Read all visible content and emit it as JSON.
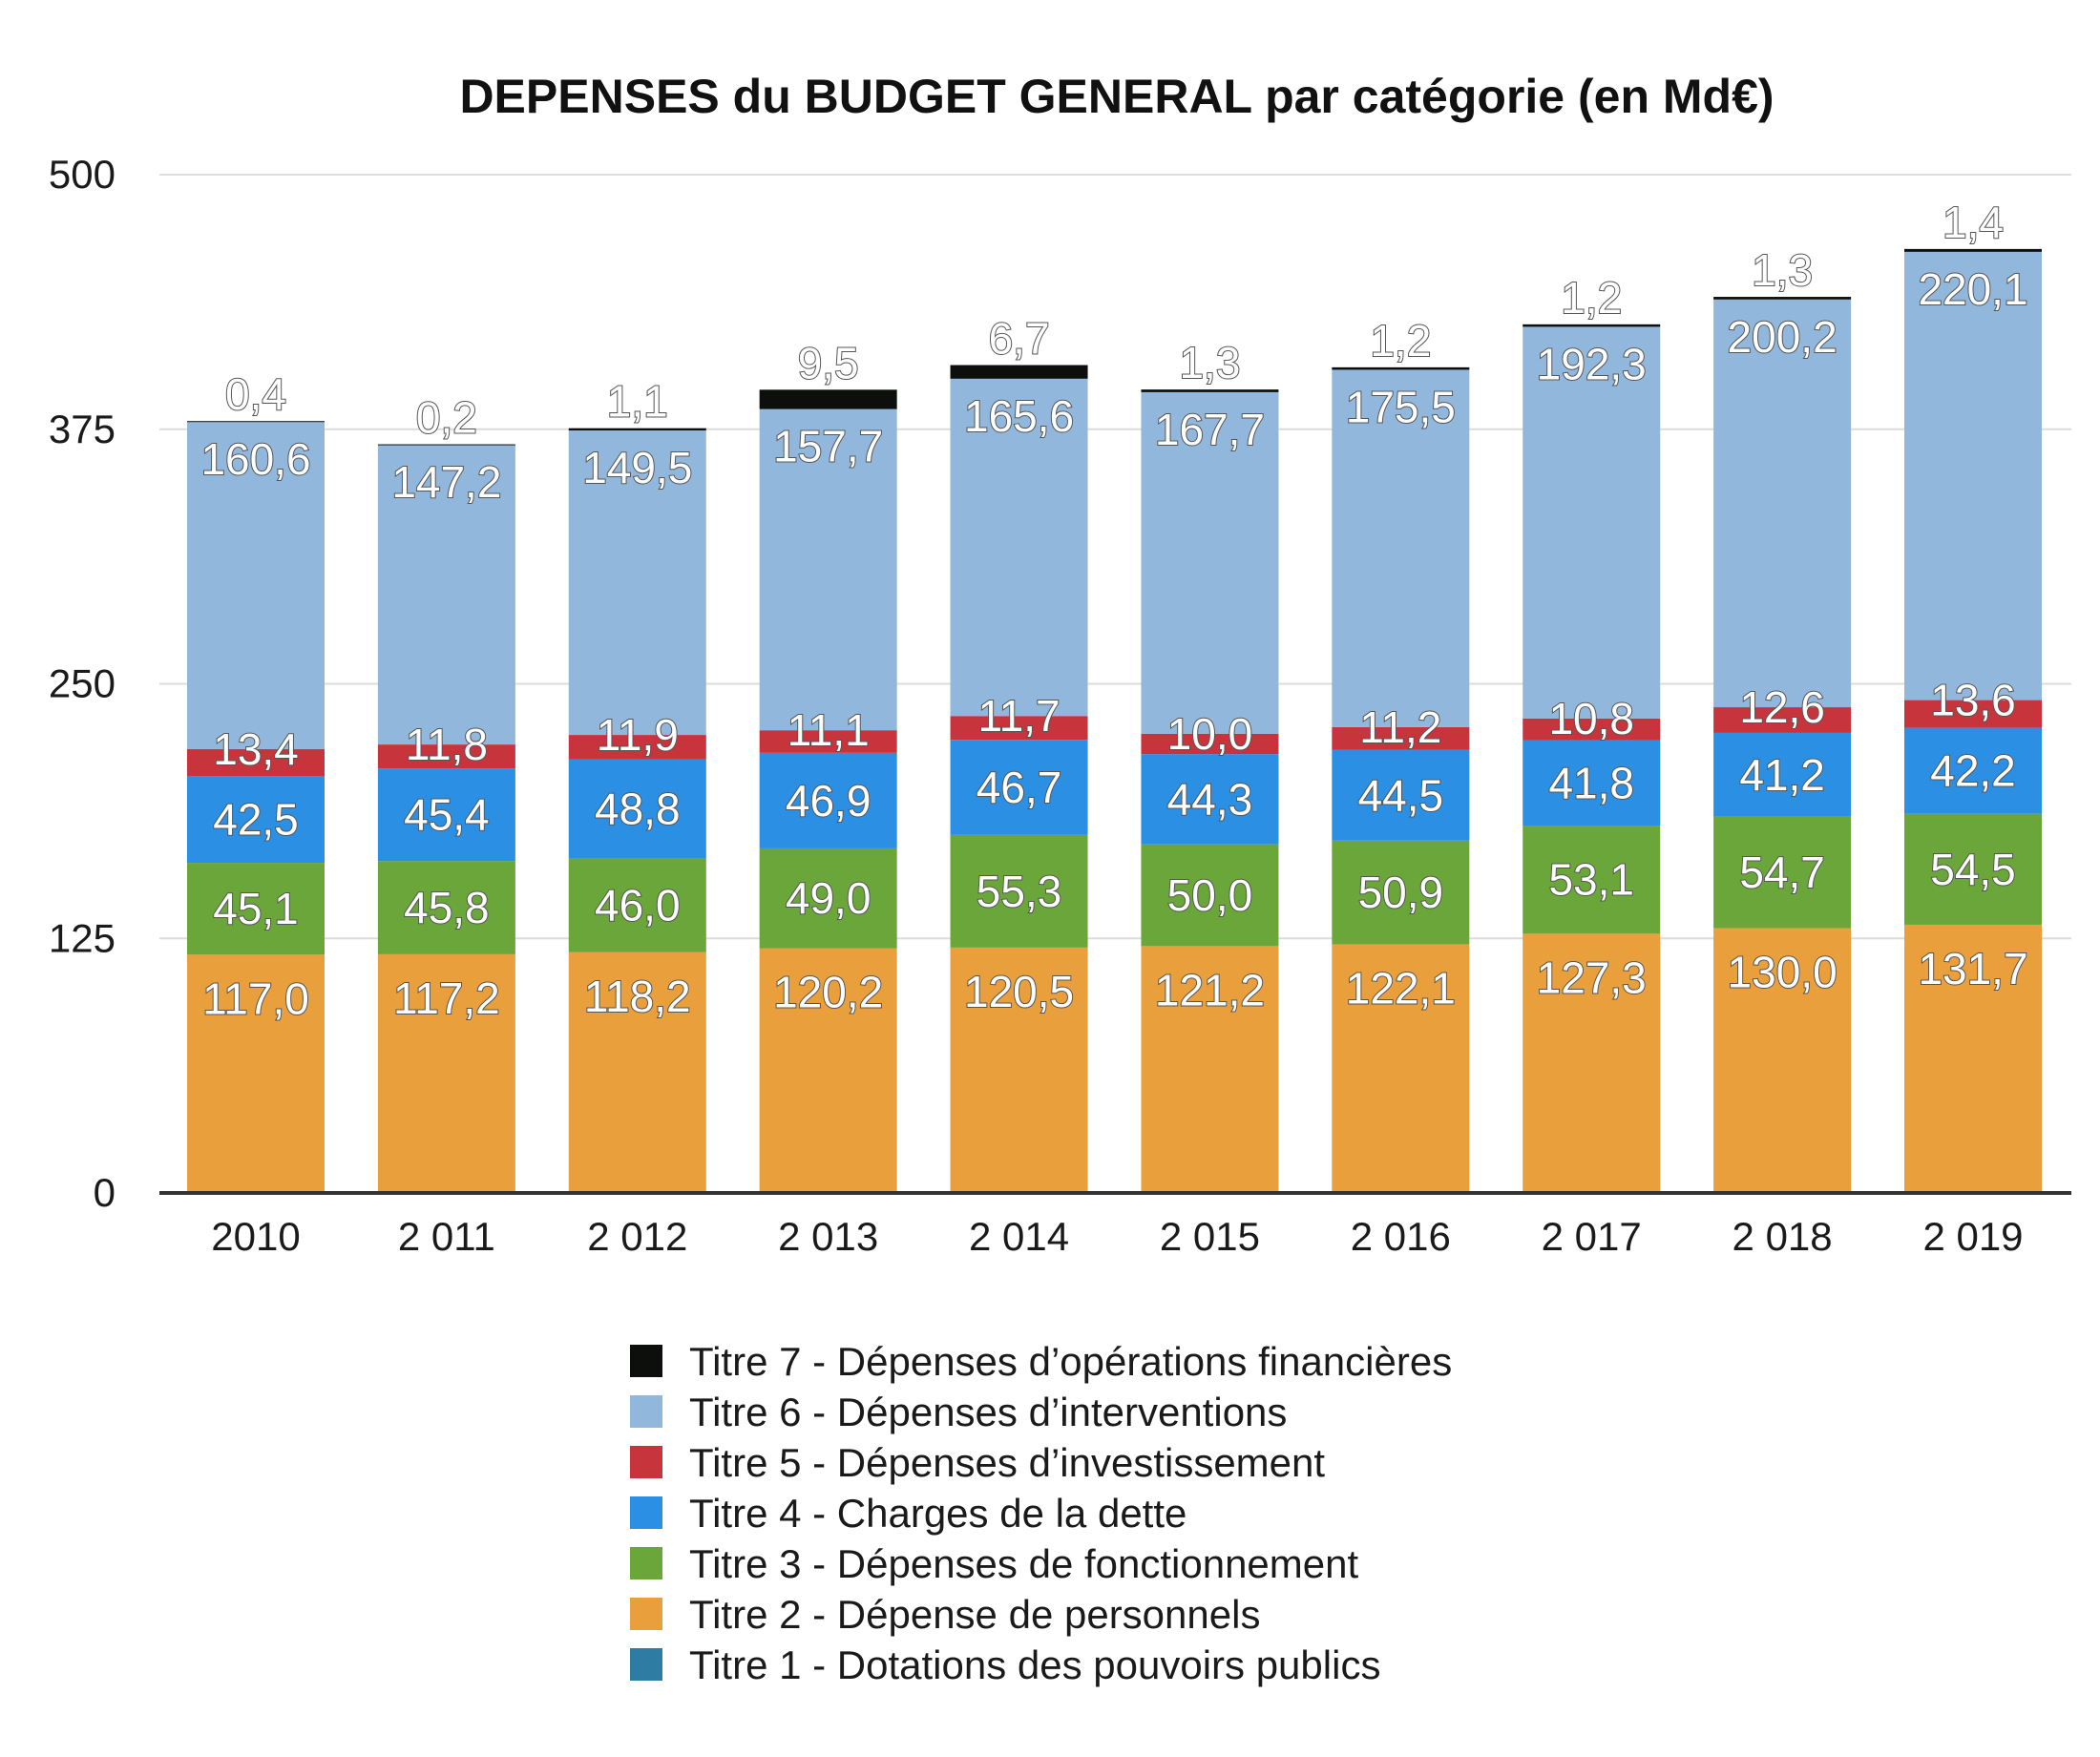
{
  "chart_data": {
    "type": "bar",
    "stacked": true,
    "title": "DEPENSES du BUDGET GENERAL par catégorie (en Md€)",
    "xlabel": "",
    "ylabel": "",
    "ylim": [
      0,
      500
    ],
    "yticks": [
      0,
      125,
      250,
      375,
      500
    ],
    "ytick_labels": [
      "0",
      "125",
      "250",
      "375",
      "500"
    ],
    "grid": true,
    "legend_position": "bottom",
    "categories": [
      "2010",
      "2 011",
      "2 012",
      "2 013",
      "2 014",
      "2 015",
      "2 016",
      "2 017",
      "2 018",
      "2 019"
    ],
    "series": [
      {
        "name": "Titre 1 - Dotations des pouvoirs publics",
        "color": "#2e7ca3",
        "values": [
          0,
          0,
          0,
          0,
          0,
          0,
          0,
          0,
          0,
          0
        ],
        "labels": [
          "",
          "",
          "",
          "",
          "",
          "",
          "",
          "",
          "",
          ""
        ]
      },
      {
        "name": "Titre 2 - Dépense de personnels",
        "color": "#e89f3c",
        "values": [
          117.0,
          117.2,
          118.2,
          120.2,
          120.5,
          121.2,
          122.1,
          127.3,
          130.0,
          131.7
        ],
        "labels": [
          "117,0",
          "117,2",
          "118,2",
          "120,2",
          "120,5",
          "121,2",
          "122,1",
          "127,3",
          "130,0",
          "131,7"
        ]
      },
      {
        "name": "Titre 3 - Dépenses de fonctionnement",
        "color": "#6aa63a",
        "values": [
          45.1,
          45.8,
          46.0,
          49.0,
          55.3,
          50.0,
          50.9,
          53.1,
          54.7,
          54.5
        ],
        "labels": [
          "45,1",
          "45,8",
          "46,0",
          "49,0",
          "55,3",
          "50,0",
          "50,9",
          "53,1",
          "54,7",
          "54,5"
        ]
      },
      {
        "name": "Titre 4 - Charges de la dette",
        "color": "#2b90e3",
        "values": [
          42.5,
          45.4,
          48.8,
          46.9,
          46.7,
          44.3,
          44.5,
          41.8,
          41.2,
          42.2
        ],
        "labels": [
          "42,5",
          "45,4",
          "48,8",
          "46,9",
          "46,7",
          "44,3",
          "44,5",
          "41,8",
          "41,2",
          "42,2"
        ]
      },
      {
        "name": "Titre 5 - Dépenses d’investissement",
        "color": "#c8343b",
        "values": [
          13.4,
          11.8,
          11.9,
          11.1,
          11.7,
          10.0,
          11.2,
          10.8,
          12.6,
          13.6
        ],
        "labels": [
          "13,4",
          "11,8",
          "11,9",
          "11,1",
          "11,7",
          "10,0",
          "11,2",
          "10,8",
          "12,6",
          "13,6"
        ]
      },
      {
        "name": "Titre 6 - Dépenses d’interventions",
        "color": "#92b7dc",
        "values": [
          160.6,
          147.2,
          149.5,
          157.7,
          165.6,
          167.7,
          175.5,
          192.3,
          200.2,
          220.1
        ],
        "labels": [
          "160,6",
          "147,2",
          "149,5",
          "157,7",
          "165,6",
          "167,7",
          "175,5",
          "192,3",
          "200,2",
          "220,1"
        ]
      },
      {
        "name": "Titre 7 - Dépenses d’opérations financières",
        "color": "#0c0f0c",
        "values": [
          0.4,
          0.2,
          1.1,
          9.5,
          6.7,
          1.3,
          1.2,
          1.2,
          1.3,
          1.4
        ],
        "labels": [
          "0,4",
          "0,2",
          "1,1",
          "9,5",
          "6,7",
          "1,3",
          "1,2",
          "1,2",
          "1,3",
          "1,4"
        ]
      }
    ],
    "legend_order": [
      6,
      5,
      4,
      3,
      2,
      1,
      0
    ]
  }
}
